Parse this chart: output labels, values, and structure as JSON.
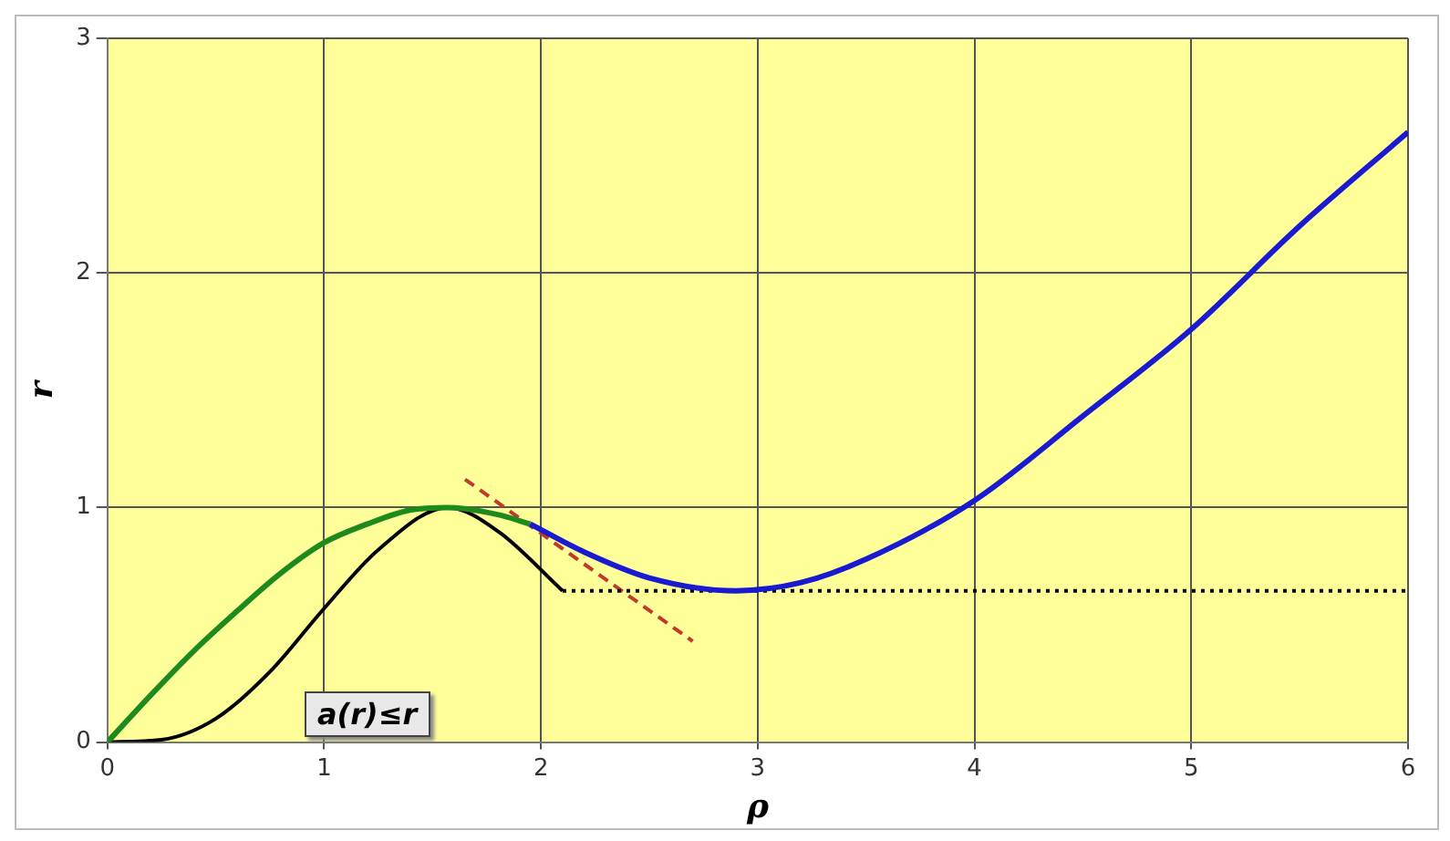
{
  "chart_data": {
    "type": "line",
    "xlabel": "ρ",
    "ylabel": "r",
    "xlim": [
      0,
      6
    ],
    "ylim": [
      0,
      3
    ],
    "xticks": [
      0,
      1,
      2,
      3,
      4,
      5,
      6
    ],
    "yticks": [
      0,
      1,
      2,
      3
    ],
    "grid": true,
    "legend": false,
    "marker": "none",
    "annotations": [
      "a(r)≤r"
    ],
    "series": [
      {
        "color": "#1e8a1e",
        "line_style": "solid",
        "x": [
          0,
          0.2,
          0.4,
          0.6,
          0.8,
          1,
          1.2,
          1.4,
          1.57,
          1.8,
          1.95
        ],
        "values": [
          0,
          0.2,
          0.39,
          0.56,
          0.72,
          0.85,
          0.93,
          0.99,
          1,
          0.97,
          0.93
        ]
      },
      {
        "color": "#1a1ad0",
        "line_style": "solid",
        "x": [
          1.95,
          2.2,
          2.5,
          2.9,
          3.2,
          3.5,
          4,
          4.5,
          5,
          5.5,
          6
        ],
        "values": [
          0.93,
          0.81,
          0.7,
          0.645,
          0.68,
          0.78,
          1.03,
          1.39,
          1.76,
          2.2,
          2.6
        ]
      },
      {
        "color": "#000000",
        "line_style": "solid",
        "x": [
          0,
          0.25,
          0.5,
          0.75,
          1,
          1.25,
          1.57,
          1.8,
          2.1
        ],
        "values": [
          0,
          0.01,
          0.1,
          0.3,
          0.57,
          0.82,
          1,
          0.9,
          0.645
        ]
      },
      {
        "color": "#000000",
        "line_style": "dotted",
        "x": [
          2.1,
          6
        ],
        "values": [
          0.645,
          0.645
        ]
      },
      {
        "color": "#c0392b",
        "line_style": "dashed",
        "x": [
          1.65,
          2.7
        ],
        "values": [
          1.12,
          0.43
        ]
      }
    ]
  }
}
